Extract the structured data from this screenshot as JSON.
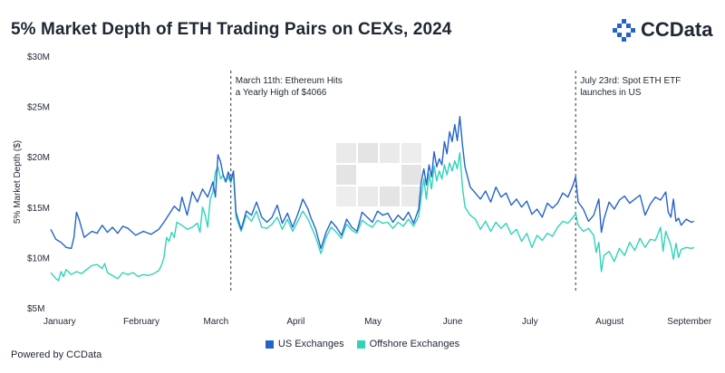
{
  "header": {
    "title": "5% Market Depth of ETH Trading Pairs on CEXs, 2024",
    "brand": "CCData"
  },
  "footer": {
    "powered_by": "Powered by CCData"
  },
  "colors": {
    "us": "#2563c9",
    "offshore": "#2fd3b9",
    "text": "#1f2733",
    "watermark": "#e6e6e6"
  },
  "chart_data": {
    "type": "line",
    "title": "5% Market Depth of ETH Trading Pairs on CEXs, 2024",
    "ylabel": "5% Market Depth ($)",
    "xlabel": "",
    "ylim": [
      5,
      30
    ],
    "xlim": [
      0,
      255
    ],
    "grid": false,
    "legend_position": "bottom-center",
    "y_ticks": [
      {
        "value": 30,
        "label": "$30M"
      },
      {
        "value": 25,
        "label": "$25M"
      },
      {
        "value": 20,
        "label": "$20M"
      },
      {
        "value": 15,
        "label": "$15M"
      },
      {
        "value": 10,
        "label": "$10M"
      },
      {
        "value": 5,
        "label": "$5M"
      }
    ],
    "x_ticks": [
      {
        "value": 0,
        "label": "January"
      },
      {
        "value": 31,
        "label": "February"
      },
      {
        "value": 60,
        "label": "March"
      },
      {
        "value": 91,
        "label": "April"
      },
      {
        "value": 121,
        "label": "May"
      },
      {
        "value": 152,
        "label": "June"
      },
      {
        "value": 182,
        "label": "July"
      },
      {
        "value": 213,
        "label": "August"
      },
      {
        "value": 244,
        "label": "September"
      }
    ],
    "annotations": [
      {
        "x": 70,
        "lines": [
          "March 11th: Ethereum Hits",
          "a Yearly High of $4066"
        ]
      },
      {
        "x": 204,
        "lines": [
          "July 23rd: Spot ETH ETF",
          "launches in US"
        ]
      }
    ],
    "series": [
      {
        "name": "US Exchanges",
        "color": "#2563c9",
        "points": [
          [
            0,
            12.8
          ],
          [
            2,
            11.8
          ],
          [
            4,
            11.5
          ],
          [
            6,
            11.0
          ],
          [
            8,
            10.9
          ],
          [
            9,
            12.0
          ],
          [
            10,
            14.5
          ],
          [
            11,
            13.8
          ],
          [
            13,
            12.0
          ],
          [
            16,
            12.6
          ],
          [
            18,
            12.4
          ],
          [
            20,
            13.2
          ],
          [
            22,
            12.5
          ],
          [
            24,
            13.0
          ],
          [
            26,
            12.4
          ],
          [
            28,
            13.1
          ],
          [
            30,
            12.9
          ],
          [
            33,
            12.2
          ],
          [
            36,
            12.6
          ],
          [
            39,
            12.3
          ],
          [
            42,
            12.8
          ],
          [
            44,
            13.5
          ],
          [
            46,
            14.3
          ],
          [
            48,
            15.1
          ],
          [
            50,
            14.6
          ],
          [
            51,
            16.0
          ],
          [
            53,
            14.2
          ],
          [
            55,
            16.5
          ],
          [
            57,
            15.5
          ],
          [
            59,
            16.8
          ],
          [
            61,
            16.0
          ],
          [
            63,
            17.5
          ],
          [
            64,
            16.0
          ],
          [
            65,
            20.2
          ],
          [
            66,
            19.5
          ],
          [
            67,
            18.2
          ],
          [
            68,
            17.5
          ],
          [
            69,
            18.5
          ],
          [
            70,
            17.6
          ],
          [
            71,
            18.6
          ],
          [
            72,
            14.5
          ],
          [
            74,
            12.8
          ],
          [
            76,
            14.6
          ],
          [
            78,
            14.2
          ],
          [
            80,
            15.5
          ],
          [
            82,
            14.0
          ],
          [
            84,
            13.5
          ],
          [
            86,
            14.0
          ],
          [
            88,
            15.2
          ],
          [
            90,
            13.4
          ],
          [
            92,
            14.4
          ],
          [
            94,
            13.0
          ],
          [
            96,
            14.3
          ],
          [
            98,
            15.8
          ],
          [
            100,
            14.8
          ],
          [
            101,
            14.0
          ],
          [
            103,
            12.8
          ],
          [
            105,
            10.9
          ],
          [
            107,
            12.5
          ],
          [
            109,
            13.6
          ],
          [
            111,
            13.0
          ],
          [
            113,
            12.2
          ],
          [
            115,
            13.8
          ],
          [
            117,
            13.0
          ],
          [
            119,
            12.6
          ],
          [
            121,
            14.5
          ],
          [
            123,
            14.0
          ],
          [
            125,
            13.5
          ],
          [
            127,
            14.6
          ],
          [
            129,
            14.2
          ],
          [
            131,
            14.4
          ],
          [
            133,
            13.5
          ],
          [
            135,
            14.2
          ],
          [
            137,
            13.7
          ],
          [
            139,
            14.5
          ],
          [
            141,
            13.4
          ],
          [
            143,
            14.8
          ],
          [
            144,
            17.5
          ],
          [
            145,
            18.8
          ],
          [
            146,
            17.2
          ],
          [
            147,
            19.2
          ],
          [
            148,
            18.0
          ],
          [
            149,
            20.5
          ],
          [
            150,
            19.0
          ],
          [
            151,
            19.8
          ],
          [
            152,
            19.2
          ],
          [
            153,
            21.5
          ],
          [
            154,
            20.3
          ],
          [
            155,
            22.5
          ],
          [
            156,
            21.5
          ],
          [
            157,
            23.2
          ],
          [
            158,
            21.6
          ],
          [
            159,
            24.0
          ],
          [
            160,
            21.2
          ],
          [
            161,
            19.0
          ],
          [
            163,
            17.0
          ],
          [
            165,
            16.4
          ],
          [
            167,
            15.8
          ],
          [
            169,
            16.6
          ],
          [
            171,
            15.5
          ],
          [
            173,
            17.0
          ],
          [
            175,
            16.0
          ],
          [
            177,
            16.4
          ],
          [
            179,
            15.2
          ],
          [
            181,
            15.8
          ],
          [
            183,
            15.0
          ],
          [
            185,
            15.6
          ],
          [
            187,
            14.3
          ],
          [
            189,
            14.8
          ],
          [
            191,
            14.0
          ],
          [
            193,
            15.4
          ],
          [
            195,
            14.9
          ],
          [
            197,
            15.4
          ],
          [
            199,
            16.4
          ],
          [
            201,
            16.0
          ],
          [
            203,
            17.2
          ],
          [
            204,
            18.0
          ],
          [
            205,
            15.5
          ],
          [
            207,
            14.8
          ],
          [
            209,
            13.6
          ],
          [
            211,
            14.2
          ],
          [
            213,
            15.8
          ],
          [
            214,
            12.5
          ],
          [
            215,
            13.8
          ],
          [
            217,
            15.5
          ],
          [
            219,
            14.8
          ],
          [
            221,
            15.7
          ],
          [
            223,
            16.1
          ],
          [
            225,
            15.4
          ],
          [
            227,
            15.8
          ],
          [
            229,
            16.2
          ],
          [
            231,
            14.2
          ],
          [
            233,
            15.3
          ],
          [
            235,
            16.0
          ],
          [
            237,
            15.7
          ],
          [
            239,
            16.5
          ],
          [
            240,
            14.5
          ],
          [
            241,
            14.0
          ],
          [
            242,
            15.8
          ],
          [
            243,
            13.6
          ],
          [
            244,
            13.9
          ],
          [
            245,
            13.2
          ],
          [
            247,
            13.8
          ],
          [
            249,
            13.5
          ],
          [
            250,
            13.6
          ]
        ]
      },
      {
        "name": "Offshore Exchanges",
        "color": "#2fd3b9",
        "points": [
          [
            0,
            8.5
          ],
          [
            1,
            8.2
          ],
          [
            2,
            7.9
          ],
          [
            3,
            7.7
          ],
          [
            4,
            8.6
          ],
          [
            5,
            8.1
          ],
          [
            6,
            8.8
          ],
          [
            8,
            8.3
          ],
          [
            10,
            8.6
          ],
          [
            12,
            8.4
          ],
          [
            14,
            8.8
          ],
          [
            16,
            9.2
          ],
          [
            18,
            9.3
          ],
          [
            20,
            8.9
          ],
          [
            21,
            9.4
          ],
          [
            22,
            8.5
          ],
          [
            24,
            8.2
          ],
          [
            26,
            7.9
          ],
          [
            28,
            8.5
          ],
          [
            30,
            8.3
          ],
          [
            32,
            8.5
          ],
          [
            34,
            8.1
          ],
          [
            36,
            8.3
          ],
          [
            38,
            8.2
          ],
          [
            40,
            8.4
          ],
          [
            42,
            8.7
          ],
          [
            43,
            9.2
          ],
          [
            44,
            10.0
          ],
          [
            45,
            12.0
          ],
          [
            46,
            11.6
          ],
          [
            47,
            12.5
          ],
          [
            48,
            12.0
          ],
          [
            49,
            13.5
          ],
          [
            51,
            13.2
          ],
          [
            53,
            12.8
          ],
          [
            55,
            13.0
          ],
          [
            57,
            13.4
          ],
          [
            58,
            12.5
          ],
          [
            59,
            15.0
          ],
          [
            60,
            14.2
          ],
          [
            61,
            13.0
          ],
          [
            62,
            15.8
          ],
          [
            63,
            16.5
          ],
          [
            64,
            18.5
          ],
          [
            65,
            19.0
          ],
          [
            66,
            17.8
          ],
          [
            67,
            18.2
          ],
          [
            68,
            17.5
          ],
          [
            69,
            18.0
          ],
          [
            70,
            17.4
          ],
          [
            71,
            18.5
          ],
          [
            72,
            14.0
          ],
          [
            74,
            12.6
          ],
          [
            76,
            14.2
          ],
          [
            78,
            13.6
          ],
          [
            80,
            14.6
          ],
          [
            82,
            13.0
          ],
          [
            84,
            12.9
          ],
          [
            86,
            13.3
          ],
          [
            88,
            14.0
          ],
          [
            90,
            12.8
          ],
          [
            92,
            13.8
          ],
          [
            94,
            12.6
          ],
          [
            96,
            13.6
          ],
          [
            98,
            14.6
          ],
          [
            100,
            13.8
          ],
          [
            101,
            13.2
          ],
          [
            103,
            12.0
          ],
          [
            105,
            10.4
          ],
          [
            107,
            12.0
          ],
          [
            109,
            13.0
          ],
          [
            111,
            12.5
          ],
          [
            113,
            11.9
          ],
          [
            115,
            13.3
          ],
          [
            117,
            12.7
          ],
          [
            119,
            12.4
          ],
          [
            121,
            13.7
          ],
          [
            123,
            13.3
          ],
          [
            125,
            13.0
          ],
          [
            127,
            13.7
          ],
          [
            129,
            13.4
          ],
          [
            131,
            13.5
          ],
          [
            133,
            12.9
          ],
          [
            135,
            13.5
          ],
          [
            137,
            13.1
          ],
          [
            139,
            13.8
          ],
          [
            141,
            13.1
          ],
          [
            143,
            14.1
          ],
          [
            144,
            16.0
          ],
          [
            145,
            17.8
          ],
          [
            146,
            15.8
          ],
          [
            147,
            18.3
          ],
          [
            148,
            16.8
          ],
          [
            149,
            19.1
          ],
          [
            150,
            17.6
          ],
          [
            151,
            18.6
          ],
          [
            152,
            17.8
          ],
          [
            153,
            19.2
          ],
          [
            154,
            18.2
          ],
          [
            155,
            19.4
          ],
          [
            156,
            18.6
          ],
          [
            157,
            19.6
          ],
          [
            158,
            18.8
          ],
          [
            159,
            20.4
          ],
          [
            160,
            17.0
          ],
          [
            161,
            15.0
          ],
          [
            163,
            14.2
          ],
          [
            165,
            13.8
          ],
          [
            167,
            12.8
          ],
          [
            169,
            13.6
          ],
          [
            171,
            12.6
          ],
          [
            173,
            13.5
          ],
          [
            175,
            12.9
          ],
          [
            177,
            13.4
          ],
          [
            179,
            12.3
          ],
          [
            181,
            12.8
          ],
          [
            183,
            11.6
          ],
          [
            185,
            12.4
          ],
          [
            187,
            11.0
          ],
          [
            189,
            12.2
          ],
          [
            191,
            11.7
          ],
          [
            193,
            12.4
          ],
          [
            195,
            12.1
          ],
          [
            197,
            13.0
          ],
          [
            199,
            13.6
          ],
          [
            201,
            13.4
          ],
          [
            203,
            14.0
          ],
          [
            204,
            14.4
          ],
          [
            205,
            13.2
          ],
          [
            207,
            12.6
          ],
          [
            209,
            12.9
          ],
          [
            211,
            12.2
          ],
          [
            212,
            10.5
          ],
          [
            213,
            11.5
          ],
          [
            214,
            8.6
          ],
          [
            215,
            10.2
          ],
          [
            217,
            10.6
          ],
          [
            219,
            9.6
          ],
          [
            221,
            10.9
          ],
          [
            223,
            10.2
          ],
          [
            225,
            11.5
          ],
          [
            227,
            10.7
          ],
          [
            229,
            11.9
          ],
          [
            231,
            11.0
          ],
          [
            233,
            11.8
          ],
          [
            235,
            11.7
          ],
          [
            237,
            13.0
          ],
          [
            238,
            10.6
          ],
          [
            239,
            12.6
          ],
          [
            241,
            11.2
          ],
          [
            242,
            9.8
          ],
          [
            243,
            11.4
          ],
          [
            244,
            10.0
          ],
          [
            245,
            10.8
          ],
          [
            247,
            11.0
          ],
          [
            249,
            10.9
          ],
          [
            250,
            11.0
          ]
        ]
      }
    ]
  }
}
